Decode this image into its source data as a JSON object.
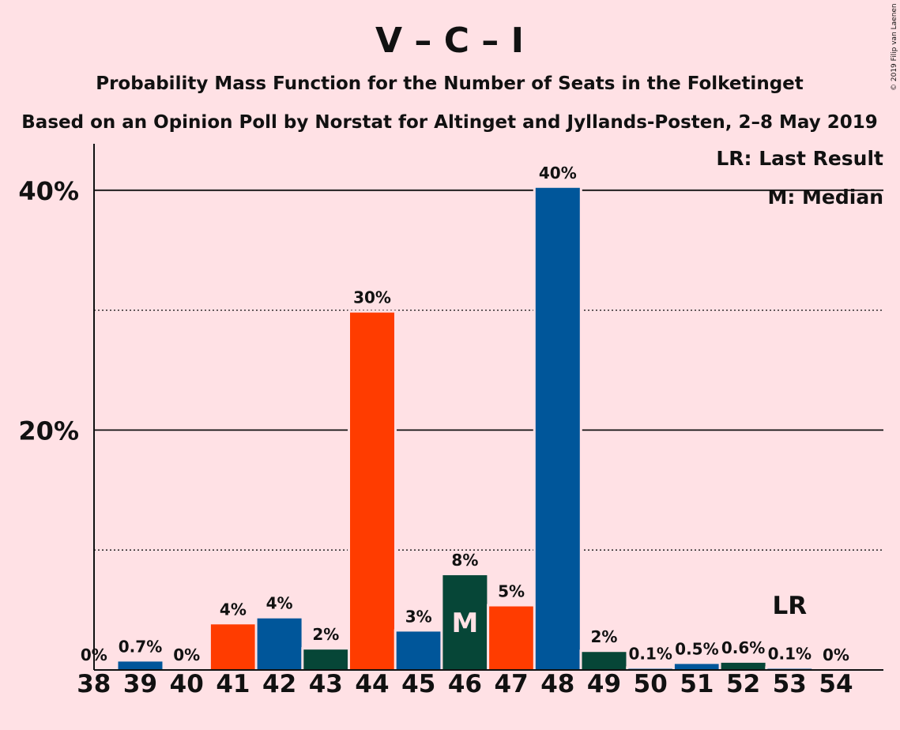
{
  "chart_data": {
    "type": "bar",
    "title": "V – C – I",
    "subtitle1": "Probability Mass Function for the Number of Seats in the Folketinget",
    "subtitle2": "Based on an Opinion Poll by Norstat for Altinget and Jyllands-Posten, 2–8 May 2019",
    "copyright": "© 2019 Filip van Laenen",
    "categories": [
      "38",
      "39",
      "40",
      "41",
      "42",
      "43",
      "44",
      "45",
      "46",
      "47",
      "48",
      "49",
      "50",
      "51",
      "52",
      "53",
      "54"
    ],
    "values": [
      0,
      0.7,
      0,
      3.8,
      4.3,
      1.7,
      29.8,
      3.2,
      7.9,
      5.3,
      40.2,
      1.5,
      0.1,
      0.5,
      0.6,
      0.1,
      0
    ],
    "labels": [
      "0%",
      "0.7%",
      "0%",
      "4%",
      "4%",
      "2%",
      "30%",
      "3%",
      "8%",
      "5%",
      "40%",
      "2%",
      "0.1%",
      "0.5%",
      "0.6%",
      "0.1%",
      "0%"
    ],
    "bar_colors": [
      "#00569a",
      "#00569a",
      "#00569a",
      "#ff3c00",
      "#00569a",
      "#064637",
      "#ff3c00",
      "#00569a",
      "#064637",
      "#ff3c00",
      "#00569a",
      "#064637",
      "#00569a",
      "#00569a",
      "#064637",
      "#00569a",
      "#00569a"
    ],
    "ylim": [
      0,
      44
    ],
    "yticks_major": [
      {
        "value": 20,
        "label": "20%"
      },
      {
        "value": 40,
        "label": "40%"
      }
    ],
    "yticks_minor": [
      10,
      30
    ],
    "median_seat": "46",
    "median_marker": "M",
    "last_result_seat": "53",
    "last_result_marker": "LR",
    "legend": [
      "LR: Last Result",
      "M: Median"
    ]
  }
}
